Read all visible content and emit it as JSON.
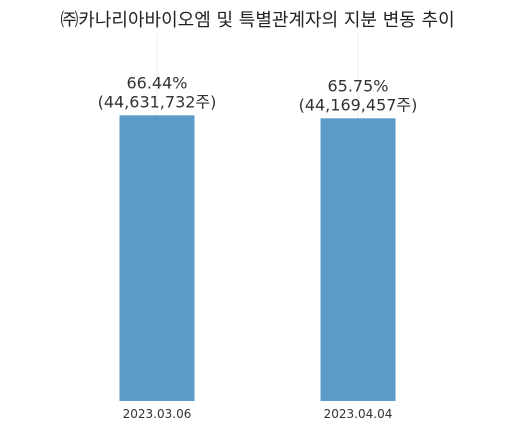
{
  "chart_data": {
    "type": "bar",
    "title": "㈜카나리아바이오엠 및 특별관계자의 지분 변동 추이",
    "categories": [
      "2023.03.06",
      "2023.04.04"
    ],
    "series": [
      {
        "values": [
          66.44,
          65.75
        ],
        "shares": [
          "44,631,732주",
          "44,169,457주"
        ]
      }
    ],
    "value_labels": [
      "66.44%",
      "65.75%"
    ],
    "share_labels": [
      "(44,631,732주)",
      "(44,169,457주)"
    ],
    "bar_color": "#5a9bc8",
    "gridlines": "vertical-faint",
    "legend": "none"
  }
}
